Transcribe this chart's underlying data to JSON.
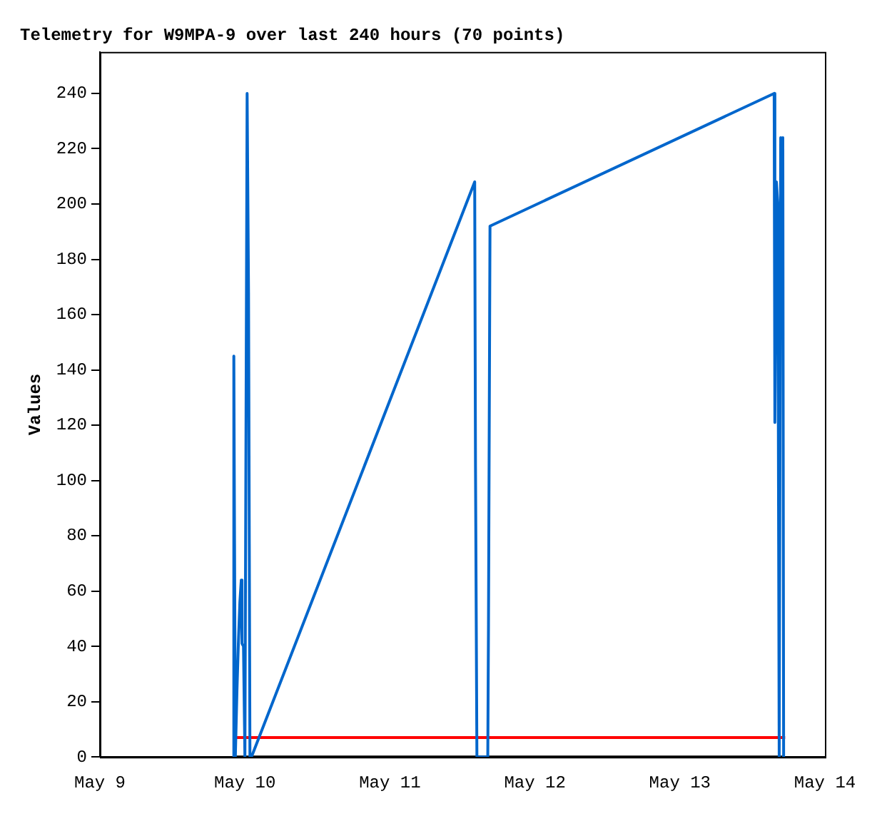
{
  "chart_data": {
    "type": "line",
    "title": "Telemetry for W9MPA-9 over last 240 hours (70 points)",
    "ylabel": "Values",
    "xlim": [
      "--05-09",
      "--05-14"
    ],
    "xticks": [
      {
        "value": "--05-09",
        "label": "May 9"
      },
      {
        "value": "--05-10",
        "label": "May 10"
      },
      {
        "value": "--05-11",
        "label": "May 11"
      },
      {
        "value": "--05-12",
        "label": "May 12"
      },
      {
        "value": "--05-13",
        "label": "May 13"
      },
      {
        "value": "--05-14",
        "label": "May 14"
      }
    ],
    "ylim": [
      0,
      255
    ],
    "yticks": [
      0,
      20,
      40,
      60,
      80,
      100,
      120,
      140,
      160,
      180,
      200,
      220,
      240
    ],
    "grid": false,
    "legend": false,
    "marker": "none",
    "line_style": "solid",
    "series": [
      {
        "color": "#0066cc",
        "x": [
          "--05-09T22:05",
          "--05-09T22:10",
          "--05-09T22:25",
          "--05-09T22:41",
          "--05-09T22:55",
          "--05-09T23:10",
          "--05-09T23:24",
          "--05-09T23:31",
          "--05-09T23:46",
          "--05-10T00:00",
          "--05-10T00:22",
          "--05-10T00:36",
          "--05-10T00:50",
          "--05-10T01:05",
          "--05-11T14:02",
          "--05-11T14:10",
          "--05-11T14:24",
          "--05-11T16:12",
          "--05-11T16:19",
          "--05-11T16:34",
          "--05-13T15:36",
          "--05-13T15:43",
          "--05-13T15:58",
          "--05-13T16:12",
          "--05-13T16:26",
          "--05-13T16:41",
          "--05-13T16:55",
          "--05-13T17:02",
          "--05-13T17:10"
        ],
        "values": [
          0,
          145,
          0,
          24,
          41,
          56,
          64,
          41,
          40,
          0,
          240,
          168,
          0,
          0,
          208,
          105,
          0,
          0,
          48,
          192,
          240,
          121,
          208,
          200,
          0,
          224,
          160,
          224,
          0
        ]
      },
      {
        "color": "#ff0000",
        "x": [
          "--05-09T22:05",
          "--05-13T17:25"
        ],
        "values": [
          7,
          7
        ]
      },
      {
        "color": "#000000",
        "x": [
          "--05-09T22:05",
          "--05-13T17:10"
        ],
        "values": [
          0,
          0
        ]
      }
    ]
  }
}
